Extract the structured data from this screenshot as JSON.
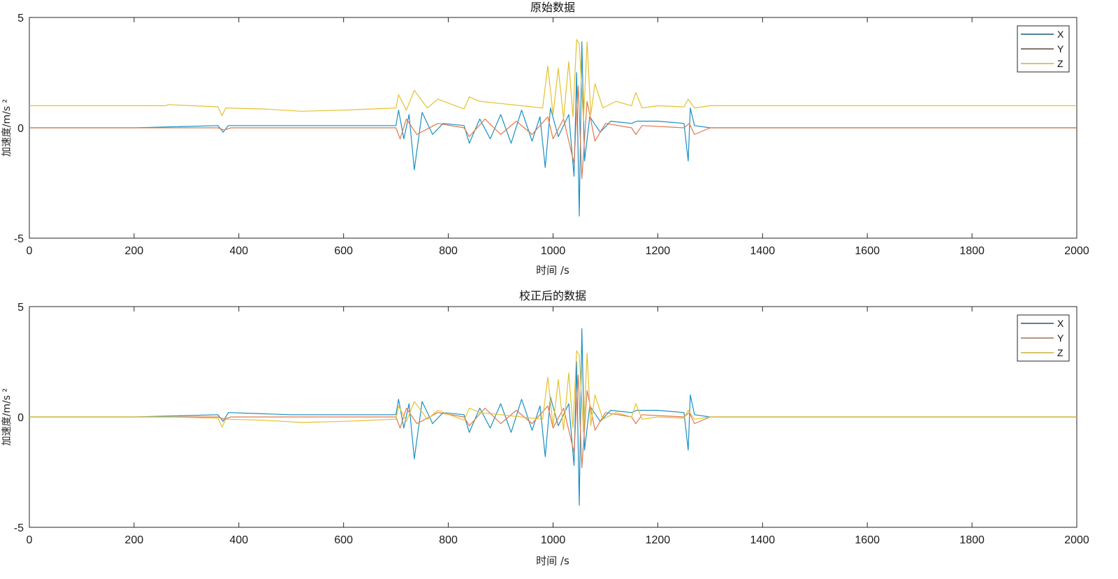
{
  "chart_data": [
    {
      "type": "line",
      "title": "原始数据",
      "xlabel": "时间 /s",
      "ylabel": "加速度/m/s ²",
      "xlim": [
        0,
        2000
      ],
      "ylim": [
        -5,
        5
      ],
      "xticks": [
        0,
        200,
        400,
        600,
        800,
        1000,
        1200,
        1400,
        1600,
        1800,
        2000
      ],
      "yticks": [
        -5,
        0,
        5
      ],
      "grid": false,
      "legend_position": "top-right",
      "legend": [
        "X",
        "Y",
        "Z"
      ],
      "series": [
        {
          "name": "X",
          "color": "#1a8fc4",
          "x": [
            0,
            200,
            360,
            370,
            380,
            500,
            700,
            705,
            715,
            725,
            735,
            750,
            770,
            790,
            830,
            840,
            860,
            880,
            900,
            920,
            940,
            960,
            975,
            985,
            995,
            1010,
            1030,
            1040,
            1045,
            1050,
            1055,
            1060,
            1070,
            1090,
            1110,
            1150,
            1160,
            1200,
            1250,
            1258,
            1262,
            1270,
            1300,
            1400,
            2000
          ],
          "y": [
            0,
            0,
            0.1,
            -0.2,
            0.1,
            0.1,
            0.1,
            0.8,
            -0.5,
            0.6,
            -1.9,
            0.7,
            -0.3,
            0.2,
            0.1,
            -0.7,
            0.4,
            -0.5,
            0.6,
            -0.7,
            0.8,
            -0.6,
            0.5,
            -1.8,
            0.9,
            -0.4,
            0.6,
            -2.2,
            2.5,
            -4.0,
            3.9,
            -1.5,
            0.5,
            -0.2,
            0.3,
            0.2,
            0.3,
            0.3,
            0.2,
            -1.5,
            0.9,
            0.1,
            0,
            0,
            0
          ]
        },
        {
          "name": "Y",
          "color": "#e0774a",
          "x": [
            0,
            360,
            372,
            385,
            700,
            708,
            720,
            740,
            780,
            830,
            840,
            870,
            900,
            930,
            960,
            990,
            1000,
            1020,
            1040,
            1048,
            1055,
            1065,
            1080,
            1100,
            1150,
            1158,
            1170,
            1250,
            1260,
            1270,
            1300,
            2000
          ],
          "y": [
            0,
            0,
            -0.1,
            0,
            0,
            -0.5,
            0.4,
            -0.3,
            0.2,
            0,
            -0.4,
            0.4,
            -0.3,
            0.3,
            -0.3,
            0.5,
            -0.5,
            0.4,
            -1.6,
            1.9,
            -2.3,
            1.2,
            -0.6,
            0.2,
            0,
            -0.3,
            0.1,
            0,
            0.2,
            -0.3,
            0,
            0
          ]
        },
        {
          "name": "Z",
          "color": "#e4c12f",
          "x": [
            0,
            260,
            265,
            360,
            368,
            375,
            450,
            520,
            600,
            700,
            705,
            720,
            735,
            760,
            780,
            830,
            840,
            860,
            900,
            940,
            980,
            990,
            1000,
            1010,
            1020,
            1030,
            1038,
            1045,
            1050,
            1058,
            1065,
            1072,
            1080,
            1095,
            1120,
            1150,
            1158,
            1170,
            1200,
            1250,
            1258,
            1270,
            1300,
            1400,
            2000
          ],
          "y": [
            1.0,
            1.0,
            1.05,
            0.95,
            0.55,
            0.9,
            0.85,
            0.75,
            0.8,
            0.9,
            1.5,
            0.8,
            1.7,
            0.9,
            1.3,
            0.85,
            1.4,
            1.2,
            1.1,
            1.0,
            0.9,
            2.8,
            0.6,
            2.7,
            0.4,
            3.0,
            0.5,
            4.0,
            3.8,
            0.3,
            3.9,
            0.6,
            2.0,
            0.9,
            1.2,
            1.0,
            1.6,
            0.9,
            1.0,
            0.95,
            1.3,
            0.9,
            1.0,
            1.0,
            1.0
          ]
        }
      ]
    },
    {
      "type": "line",
      "title": "校正后的数据",
      "xlabel": "时间 /s",
      "ylabel": "加速度/m/s ²",
      "xlim": [
        0,
        2000
      ],
      "ylim": [
        -5,
        5
      ],
      "xticks": [
        0,
        200,
        400,
        600,
        800,
        1000,
        1200,
        1400,
        1600,
        1800,
        2000
      ],
      "yticks": [
        -5,
        0,
        5
      ],
      "grid": false,
      "legend_position": "top-right",
      "legend": [
        "X",
        "Y",
        "Z"
      ],
      "series": [
        {
          "name": "X",
          "color": "#1a8fc4",
          "x": [
            0,
            200,
            360,
            370,
            380,
            500,
            700,
            705,
            715,
            725,
            735,
            750,
            770,
            790,
            830,
            840,
            860,
            880,
            900,
            920,
            940,
            960,
            975,
            985,
            995,
            1010,
            1030,
            1040,
            1045,
            1050,
            1055,
            1060,
            1070,
            1090,
            1110,
            1150,
            1160,
            1200,
            1250,
            1258,
            1262,
            1270,
            1300,
            1400,
            2000
          ],
          "y": [
            0,
            0,
            0.1,
            -0.2,
            0.2,
            0.1,
            0.1,
            0.8,
            -0.5,
            0.6,
            -1.9,
            0.7,
            -0.3,
            0.2,
            0.1,
            -0.7,
            0.4,
            -0.5,
            0.6,
            -0.7,
            0.8,
            -0.6,
            0.5,
            -1.8,
            0.9,
            -0.4,
            0.6,
            -2.2,
            2.5,
            -4.0,
            4.0,
            -1.5,
            0.5,
            -0.2,
            0.3,
            0.2,
            0.3,
            0.3,
            0.2,
            -1.5,
            1.0,
            0.1,
            0,
            0,
            0
          ]
        },
        {
          "name": "Y",
          "color": "#e0774a",
          "x": [
            0,
            360,
            372,
            385,
            700,
            708,
            720,
            740,
            780,
            830,
            840,
            870,
            900,
            930,
            960,
            990,
            1000,
            1020,
            1040,
            1048,
            1055,
            1065,
            1080,
            1100,
            1150,
            1158,
            1170,
            1250,
            1260,
            1270,
            1300,
            2000
          ],
          "y": [
            0,
            0,
            -0.1,
            0,
            0,
            -0.5,
            0.4,
            -0.3,
            0.2,
            0,
            -0.4,
            0.4,
            -0.3,
            0.3,
            -0.3,
            0.5,
            -0.5,
            0.4,
            -1.6,
            1.9,
            -2.3,
            1.2,
            -0.6,
            0.2,
            0,
            -0.3,
            0.1,
            0,
            0.2,
            -0.3,
            0,
            0
          ]
        },
        {
          "name": "Z",
          "color": "#e4c12f",
          "x": [
            0,
            260,
            360,
            368,
            375,
            450,
            520,
            600,
            700,
            705,
            720,
            735,
            760,
            780,
            830,
            840,
            860,
            900,
            940,
            980,
            990,
            1000,
            1010,
            1020,
            1030,
            1038,
            1045,
            1050,
            1058,
            1065,
            1072,
            1080,
            1095,
            1120,
            1150,
            1158,
            1170,
            1200,
            1250,
            1258,
            1270,
            1300,
            1400,
            2000
          ],
          "y": [
            0,
            0,
            -0.05,
            -0.45,
            -0.1,
            -0.15,
            -0.25,
            -0.2,
            -0.1,
            0.5,
            -0.2,
            0.7,
            -0.1,
            0.3,
            -0.15,
            0.4,
            0.2,
            0.1,
            0,
            -0.1,
            1.8,
            -0.4,
            1.7,
            -0.6,
            2.0,
            -0.5,
            3.0,
            2.8,
            -0.7,
            2.9,
            -0.4,
            1.0,
            -0.1,
            0.2,
            0,
            0.6,
            -0.1,
            0,
            -0.05,
            0.3,
            -0.1,
            0,
            0,
            0
          ]
        }
      ]
    }
  ]
}
